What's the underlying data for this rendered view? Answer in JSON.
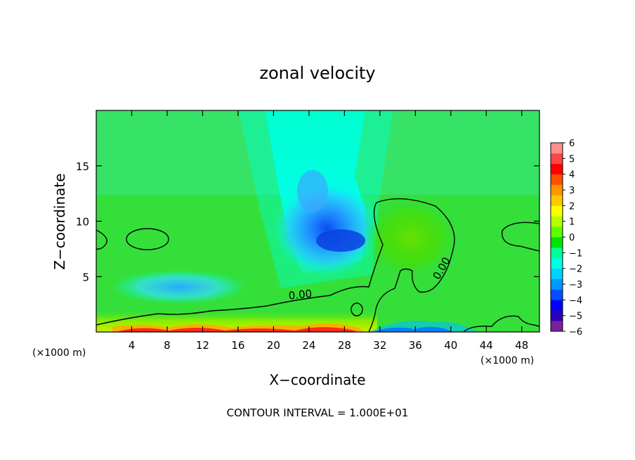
{
  "chart_data": {
    "type": "heatmap",
    "title": "zonal velocity",
    "xlabel": "X−coordinate",
    "ylabel": "Z−coordinate",
    "x_unit_left": "(×1000 m)",
    "x_unit_right": "(×1000 m)",
    "footer": "CONTOUR INTERVAL = 1.000E+01",
    "xlim": [
      0,
      50
    ],
    "ylim": [
      0,
      20
    ],
    "x_ticks": [
      4,
      8,
      12,
      16,
      20,
      24,
      28,
      32,
      36,
      40,
      44,
      48
    ],
    "x_tick_labels": [
      "4",
      "8",
      "12",
      "16",
      "20",
      "24",
      "28",
      "32",
      "36",
      "40",
      "44",
      "48"
    ],
    "y_ticks": [
      5,
      10,
      15
    ],
    "y_tick_labels": [
      "5",
      "10",
      "15"
    ],
    "colorbar": {
      "min": -6,
      "max": 6,
      "tick_labels": [
        "6",
        "5",
        "4",
        "3",
        "2",
        "1",
        "0",
        "−1",
        "−2",
        "−3",
        "−4",
        "−5",
        "−6"
      ],
      "colors": [
        "#7a1fa0",
        "#2a00b8",
        "#0000ff",
        "#0050ff",
        "#0096ff",
        "#00d2ff",
        "#00ffe6",
        "#00ff96",
        "#00e400",
        "#5aff00",
        "#b4ff00",
        "#ffff00",
        "#ffc800",
        "#ff9600",
        "#ff5000",
        "#ff0000",
        "#ff4646",
        "#ff9090"
      ]
    },
    "contour_labels": [
      "0.00",
      "0.00"
    ],
    "contour_level": 0.0
  }
}
